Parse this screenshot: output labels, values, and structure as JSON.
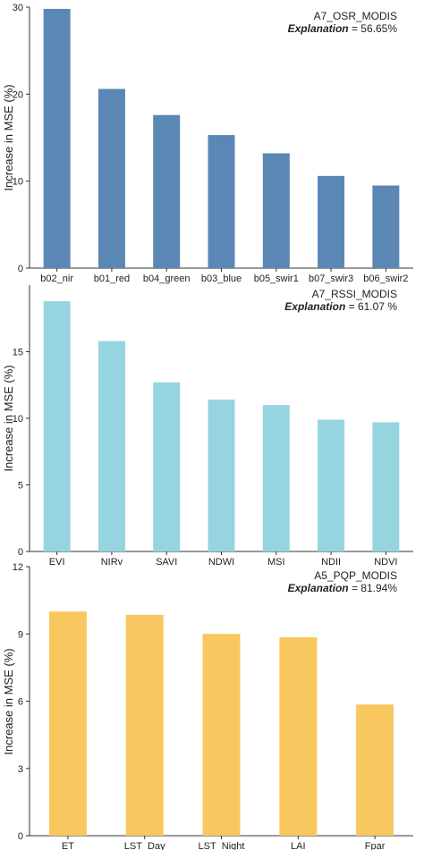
{
  "chart_data": [
    {
      "type": "bar",
      "title": "A7_OSR_MODIS",
      "explanation_label": "Explanation",
      "explanation_value": "= 56.65%",
      "ylabel": "Increase in MSE (%)",
      "ylim": [
        0,
        30
      ],
      "yticks": [
        "0",
        "10",
        "20",
        "30"
      ],
      "categories": [
        "b02_nir",
        "b01_red",
        "b04_green",
        "b03_blue",
        "b05_swir1",
        "b07_swir3",
        "b06_swir2"
      ],
      "values": [
        29.8,
        20.6,
        17.6,
        15.3,
        13.2,
        10.6,
        9.5
      ],
      "color": "#5b87b5",
      "grid": false
    },
    {
      "type": "bar",
      "title": "A7_RSSI_MODIS",
      "explanation_label": "Explanation",
      "explanation_value": "= 61.07 %",
      "ylabel": "Increase in MSE (%)",
      "ylim": [
        0,
        20
      ],
      "yticks": [
        "0",
        "5",
        "10",
        "15"
      ],
      "categories": [
        "EVI",
        "NIRv",
        "SAVI",
        "NDWI",
        "MSI",
        "NDII",
        "NDVI"
      ],
      "values": [
        18.8,
        15.8,
        12.7,
        11.4,
        11.0,
        9.9,
        9.7
      ],
      "color": "#96d5df",
      "grid": false
    },
    {
      "type": "bar",
      "title": "A5_PQP_MODIS",
      "explanation_label": "Explanation",
      "explanation_value": "= 81.94%",
      "ylabel": "Increase in MSE (%)",
      "ylim": [
        0,
        12
      ],
      "yticks": [
        "0",
        "3",
        "6",
        "9",
        "12"
      ],
      "categories": [
        "ET",
        "LST_Day",
        "LST_Night",
        "LAI",
        "Fpar"
      ],
      "values": [
        10.0,
        9.85,
        9.0,
        8.85,
        5.85
      ],
      "color": "#f9c75f",
      "grid": false
    }
  ]
}
